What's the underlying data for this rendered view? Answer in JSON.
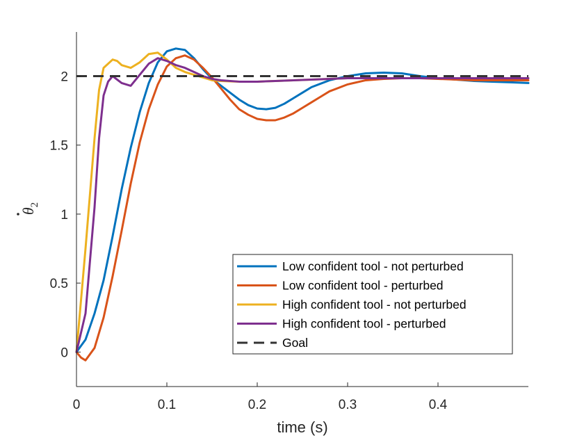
{
  "chart_data": {
    "type": "line",
    "title": "",
    "xlabel": "time (s)",
    "ylabel": "θ̇2",
    "ylabel_symbol": "θ",
    "ylabel_subscript": "2",
    "xlim": [
      0,
      0.5
    ],
    "ylim": [
      -0.25,
      2.32
    ],
    "xticks": [
      0,
      0.1,
      0.2,
      0.3,
      0.4
    ],
    "xtick_labels": [
      "0",
      "0.1",
      "0.2",
      "0.3",
      "0.4"
    ],
    "yticks": [
      0,
      0.5,
      1,
      1.5,
      2
    ],
    "ytick_labels": [
      "0",
      "0.5",
      "1",
      "1.5",
      "2"
    ],
    "grid": false,
    "legend_position": "bottom-right",
    "series": [
      {
        "name": "Low confident tool - not perturbed",
        "color": "#0072BD",
        "style": "solid",
        "x": [
          0,
          0.01,
          0.02,
          0.03,
          0.04,
          0.05,
          0.06,
          0.07,
          0.08,
          0.09,
          0.1,
          0.11,
          0.12,
          0.13,
          0.14,
          0.15,
          0.16,
          0.17,
          0.18,
          0.19,
          0.2,
          0.21,
          0.22,
          0.23,
          0.24,
          0.25,
          0.26,
          0.28,
          0.3,
          0.32,
          0.34,
          0.36,
          0.38,
          0.4,
          0.42,
          0.44,
          0.46,
          0.48,
          0.5
        ],
        "y": [
          0,
          0.09,
          0.28,
          0.52,
          0.84,
          1.18,
          1.48,
          1.74,
          1.95,
          2.1,
          2.18,
          2.2,
          2.19,
          2.13,
          2.05,
          1.98,
          1.93,
          1.88,
          1.83,
          1.79,
          1.765,
          1.76,
          1.77,
          1.8,
          1.84,
          1.88,
          1.92,
          1.97,
          2.0,
          2.02,
          2.025,
          2.02,
          2.0,
          1.985,
          1.975,
          1.965,
          1.96,
          1.955,
          1.95
        ]
      },
      {
        "name": "Low confident tool - perturbed",
        "color": "#D95319",
        "style": "solid",
        "x": [
          0,
          0.005,
          0.01,
          0.02,
          0.03,
          0.04,
          0.05,
          0.06,
          0.07,
          0.08,
          0.09,
          0.1,
          0.11,
          0.12,
          0.13,
          0.14,
          0.15,
          0.16,
          0.17,
          0.18,
          0.19,
          0.2,
          0.21,
          0.22,
          0.23,
          0.24,
          0.25,
          0.26,
          0.27,
          0.28,
          0.3,
          0.32,
          0.34,
          0.36,
          0.38,
          0.4,
          0.42,
          0.44,
          0.46,
          0.48,
          0.5
        ],
        "y": [
          0,
          -0.04,
          -0.06,
          0.03,
          0.25,
          0.55,
          0.88,
          1.22,
          1.52,
          1.76,
          1.94,
          2.07,
          2.13,
          2.15,
          2.12,
          2.06,
          1.99,
          1.91,
          1.83,
          1.76,
          1.72,
          1.69,
          1.68,
          1.68,
          1.7,
          1.73,
          1.77,
          1.81,
          1.85,
          1.89,
          1.94,
          1.97,
          1.98,
          1.985,
          1.985,
          1.98,
          1.975,
          1.97,
          1.97,
          1.97,
          1.97
        ]
      },
      {
        "name": "High confident tool - not perturbed",
        "color": "#EDB120",
        "style": "solid",
        "x": [
          0,
          0.01,
          0.02,
          0.025,
          0.03,
          0.04,
          0.045,
          0.05,
          0.06,
          0.07,
          0.08,
          0.09,
          0.1,
          0.11,
          0.12,
          0.13,
          0.14,
          0.15,
          0.16,
          0.18,
          0.2,
          0.22,
          0.24,
          0.26,
          0.28,
          0.3,
          0.34,
          0.38,
          0.42,
          0.46,
          0.5
        ],
        "y": [
          0,
          0.75,
          1.55,
          1.9,
          2.06,
          2.12,
          2.11,
          2.08,
          2.06,
          2.1,
          2.16,
          2.17,
          2.12,
          2.06,
          2.03,
          2.01,
          1.99,
          1.97,
          1.965,
          1.96,
          1.96,
          1.965,
          1.97,
          1.975,
          1.98,
          1.985,
          1.985,
          1.985,
          1.985,
          1.985,
          1.985
        ]
      },
      {
        "name": "High confident tool - perturbed",
        "color": "#7E2F8E",
        "style": "solid",
        "x": [
          0,
          0.01,
          0.02,
          0.025,
          0.03,
          0.035,
          0.04,
          0.05,
          0.06,
          0.07,
          0.08,
          0.09,
          0.1,
          0.11,
          0.12,
          0.13,
          0.14,
          0.15,
          0.16,
          0.18,
          0.2,
          0.22,
          0.24,
          0.26,
          0.28,
          0.3,
          0.34,
          0.38,
          0.42,
          0.46,
          0.5
        ],
        "y": [
          0,
          0.28,
          1.05,
          1.55,
          1.86,
          1.96,
          2.0,
          1.95,
          1.93,
          2.01,
          2.09,
          2.13,
          2.11,
          2.08,
          2.06,
          2.03,
          2.0,
          1.98,
          1.97,
          1.96,
          1.96,
          1.965,
          1.97,
          1.975,
          1.98,
          1.985,
          1.985,
          1.985,
          1.985,
          1.985,
          1.985
        ]
      },
      {
        "name": "Goal",
        "color": "#333333",
        "style": "dashed",
        "x": [
          0,
          0.5
        ],
        "y": [
          2,
          2
        ]
      }
    ]
  }
}
